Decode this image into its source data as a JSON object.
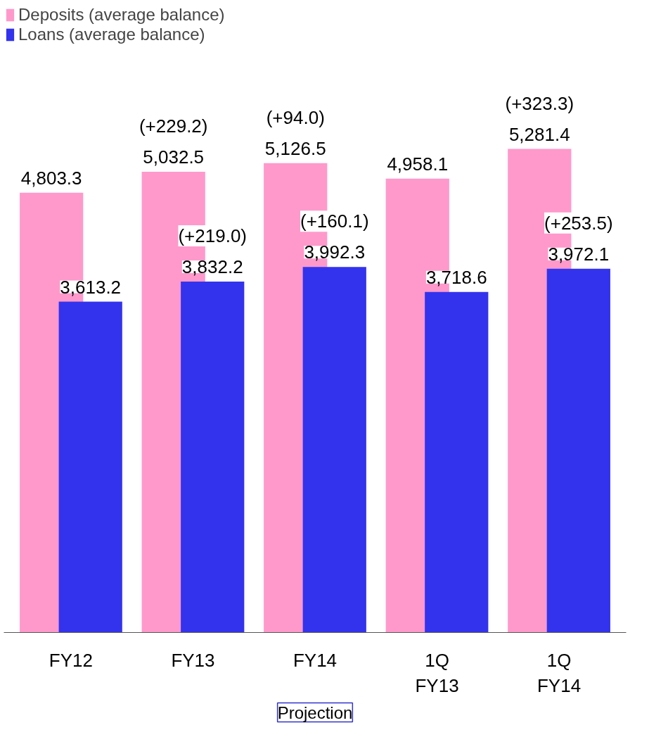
{
  "chart_data": {
    "type": "bar",
    "categories": [
      "FY12",
      "FY13",
      "FY14",
      "1Q\nFY13",
      "1Q\nFY14"
    ],
    "series": [
      {
        "name": "Deposits (average balance)",
        "color": "#ff99cc",
        "values": [
          4803.3,
          5032.5,
          5126.5,
          4958.1,
          5281.4
        ],
        "value_labels": [
          "4,803.3",
          "5,032.5",
          "5,126.5",
          "4,958.1",
          "5,281.4"
        ]
      },
      {
        "name": "Loans (average balance)",
        "color": "#3333ee",
        "values": [
          3613.2,
          3832.2,
          3992.3,
          3718.6,
          3972.1
        ],
        "value_labels": [
          "3,613.2",
          "3,832.2",
          "3,992.3",
          "3,718.6",
          "3,972.1"
        ]
      }
    ],
    "legend": "top left",
    "tick_labels": "x",
    "annotations": [
      {
        "text": "(+229.2)",
        "x": "FY13",
        "y": 5032.5
      },
      {
        "text": "(+94.0)",
        "x": "FY14",
        "y": 5126.5
      },
      {
        "text": "(+323.3)",
        "x": "1Q\nFY14",
        "y": 5281.4
      },
      {
        "text": "(+219.0)",
        "x": "FY13",
        "y": 3832.2
      },
      {
        "text": "(+160.1)",
        "x": "FY14",
        "y": 3992.3
      },
      {
        "text": "(+253.5)",
        "x": "1Q\nFY14",
        "y": 3972.1
      },
      "Projection"
    ]
  }
}
